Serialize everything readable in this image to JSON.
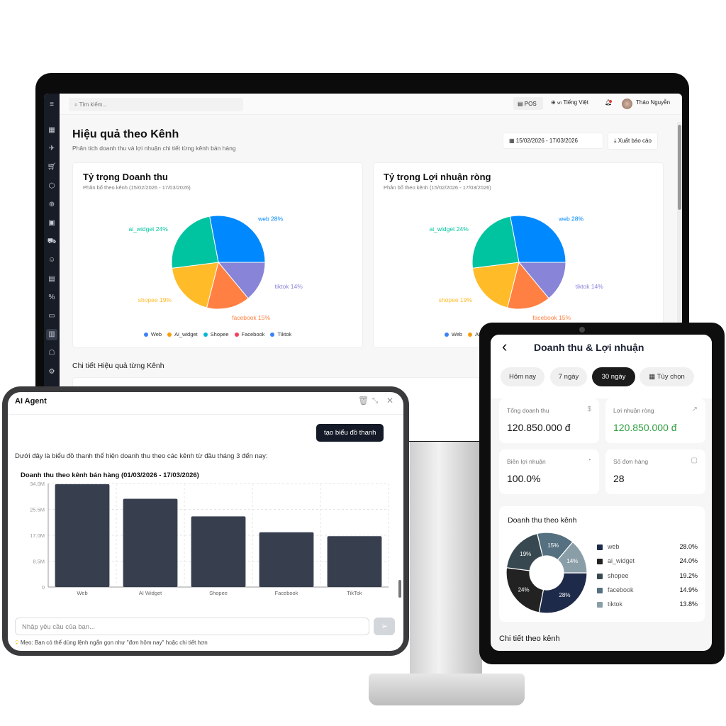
{
  "desktop": {
    "search_placeholder": "Tìm kiếm...",
    "pos_label": "POS",
    "language": "Tiếng Việt",
    "language_flag": "vn",
    "user_name": "Thảo Nguyễn",
    "page_title": "Hiệu quả theo Kênh",
    "page_subtitle": "Phân tích doanh thu và lợi nhuận chi tiết từng kênh bán hàng",
    "date_range": "15/02/2026 - 17/03/2026",
    "export_label": "Xuất báo cáo",
    "section_title": "Chi tiết Hiệu quả từng Kênh",
    "sidebar_icons": [
      "dashboard-icon",
      "rocket-icon",
      "cart-icon",
      "box-icon",
      "globe-icon",
      "store-icon",
      "truck-icon",
      "users-icon",
      "document-icon",
      "percent-icon",
      "card-icon",
      "chart-icon",
      "robot-icon",
      "settings-icon"
    ],
    "sidebar_active": "chart-icon"
  },
  "chart_data": [
    {
      "type": "pie",
      "title": "Tỷ trọng Doanh thu",
      "subtitle": "Phân bổ theo kênh (15/02/2026 - 17/03/2026)",
      "slices": [
        {
          "label": "web 28%",
          "value": 28,
          "color": "#0088fe"
        },
        {
          "label": "tiktok 14%",
          "value": 14,
          "color": "#8884d8"
        },
        {
          "label": "facebook 15%",
          "value": 15,
          "color": "#ff8042"
        },
        {
          "label": "shopee 19%",
          "value": 19,
          "color": "#ffbb28"
        },
        {
          "label": "ai_widget 24%",
          "value": 24,
          "color": "#00c49f"
        }
      ],
      "legend": [
        {
          "name": "Web",
          "color": "#3b82f6"
        },
        {
          "name": "Ai_widget",
          "color": "#f59e0b"
        },
        {
          "name": "Shopee",
          "color": "#06b6d4"
        },
        {
          "name": "Facebook",
          "color": "#f43f5e"
        },
        {
          "name": "Tiktok",
          "color": "#3b82f6"
        }
      ],
      "legend_position": "bottom"
    },
    {
      "type": "pie",
      "title": "Tỷ trọng Lợi nhuận ròng",
      "subtitle": "Phân bổ theo kênh (15/02/2026 - 17/03/2026)",
      "slices": [
        {
          "label": "web 28%",
          "value": 28,
          "color": "#0088fe"
        },
        {
          "label": "tiktok 14%",
          "value": 14,
          "color": "#8884d8"
        },
        {
          "label": "facebook 15%",
          "value": 15,
          "color": "#ff8042"
        },
        {
          "label": "shopee 19%",
          "value": 19,
          "color": "#ffbb28"
        },
        {
          "label": "ai_widget 24%",
          "value": 24,
          "color": "#00c49f"
        }
      ],
      "legend": [
        {
          "name": "Web",
          "color": "#3b82f6"
        },
        {
          "name": "Ai_widget",
          "color": "#f59e0b"
        },
        {
          "name": "Shopee",
          "color": "#06b6d4"
        },
        {
          "name": "Facebook",
          "color": "#f43f5e"
        },
        {
          "name": "Tiktok",
          "color": "#3b82f6"
        }
      ],
      "legend_position": "bottom"
    },
    {
      "type": "bar",
      "title": "Doanh thu theo kênh bán hàng (01/03/2026 - 17/03/2026)",
      "categories": [
        "Web",
        "AI Widget",
        "Shopee",
        "Facebook",
        "TikTok"
      ],
      "values": [
        33.8,
        29.0,
        23.2,
        18.0,
        16.7
      ],
      "unit": "M",
      "yticks": [
        "0",
        "8.5M",
        "17.0M",
        "25.5M",
        "34.0M"
      ],
      "ylim": [
        0,
        34
      ],
      "grid": true,
      "color": "#373f4f"
    },
    {
      "type": "pie",
      "variant": "donut",
      "title": "Doanh thu theo kênh",
      "slices": [
        {
          "name": "web",
          "label": "28%",
          "pct": "28.0%",
          "value": 28.0,
          "color": "#1e2a4a"
        },
        {
          "name": "ai_widget",
          "label": "24%",
          "pct": "24.0%",
          "value": 24.0,
          "color": "#222222"
        },
        {
          "name": "shopee",
          "label": "19%",
          "pct": "19.2%",
          "value": 19.2,
          "color": "#384850"
        },
        {
          "name": "facebook",
          "label": "15%",
          "pct": "14.9%",
          "value": 14.9,
          "color": "#557080"
        },
        {
          "name": "tiktok",
          "label": "14%",
          "pct": "13.8%",
          "value": 13.8,
          "color": "#8a9ea8"
        }
      ],
      "legend_position": "right"
    }
  ],
  "ai_agent": {
    "title": "AI Agent",
    "user_message": "tạo biểu đồ thanh",
    "reply": "Dưới đây là biểu đồ thanh thể hiện doanh thu theo các kênh từ đầu tháng 3 đến nay:",
    "input_placeholder": "Nhập yêu cầu của bạn...",
    "tip": "Mẹo: Bạn có thể dùng lệnh ngắn gọn như \"đơn hôm nay\" hoặc chi tiết hơn"
  },
  "mobile": {
    "title": "Doanh thu & Lợi nhuận",
    "filters": [
      {
        "label": "Hôm nay",
        "active": false
      },
      {
        "label": "7 ngày",
        "active": false
      },
      {
        "label": "30 ngày",
        "active": true
      },
      {
        "label": "Tùy chọn",
        "active": false
      }
    ],
    "kpis": [
      {
        "label": "Tổng doanh thu",
        "value": "120.850.000 đ",
        "icon": "dollar-icon"
      },
      {
        "label": "Lợi nhuận ròng",
        "value": "120.850.000 đ",
        "icon": "trend-up-icon",
        "color": "#2e9e3f"
      },
      {
        "label": "Biên lợi nhuận",
        "value": "100.0%",
        "icon": "pie-icon"
      },
      {
        "label": "Số đơn hàng",
        "value": "28",
        "icon": "bag-icon"
      }
    ],
    "detail_title": "Chi tiết theo kênh"
  }
}
